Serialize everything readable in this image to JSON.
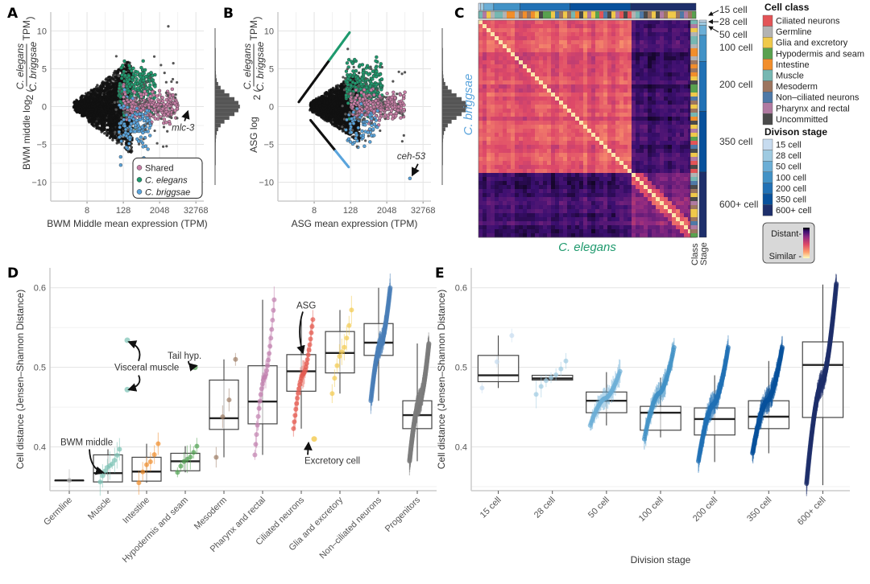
{
  "figure": {
    "panels": [
      "A",
      "B",
      "C",
      "D",
      "E"
    ]
  },
  "chart_data": [
    {
      "panel": "A",
      "type": "scatter",
      "xlabel": "BWM Middle mean expression (TPM)",
      "ylabel_prefix": "BWM middle log",
      "ylabel_num": "C. elegans",
      "ylabel_den": "C. briggsae",
      "ylabel_unit": "TPM",
      "xscale": "log2",
      "xticks": [
        "8",
        "128",
        "2048",
        "32768"
      ],
      "xtick_values": [
        8,
        128,
        2048,
        32768
      ],
      "yticks": [
        "10",
        "5",
        "0",
        "−5",
        "−10"
      ],
      "ytick_values": [
        10,
        5,
        0,
        -5,
        -10
      ],
      "xlim": [
        0.5,
        60000
      ],
      "ylim": [
        -12.5,
        12.5
      ],
      "legend": {
        "position": "bottom-right",
        "entries": [
          {
            "label": "Shared",
            "color": "#c77fa6"
          },
          {
            "label": "C. elegans",
            "color": "#1f9a6e"
          },
          {
            "label": "C. briggsae",
            "color": "#5aa4dc"
          }
        ]
      },
      "annotation": {
        "label": "mlc-3",
        "x": 20000,
        "y": 0
      },
      "marginal_histogram": "y"
    },
    {
      "panel": "B",
      "type": "scatter",
      "xlabel": "ASG mean expression (TPM)",
      "ylabel_prefix": "ASG log",
      "ylabel_num": "C. elegans",
      "ylabel_den": "C. briggsae",
      "ylabel_unit": "TPM",
      "xscale": "log2",
      "xticks": [
        "8",
        "128",
        "2048",
        "32768"
      ],
      "xtick_values": [
        8,
        128,
        2048,
        32768
      ],
      "yticks": [
        "10",
        "5",
        "0",
        "−5",
        "−10"
      ],
      "ytick_values": [
        10,
        5,
        0,
        -5,
        -10
      ],
      "xlim": [
        0.5,
        60000
      ],
      "ylim": [
        -12.5,
        12.5
      ],
      "annotation": {
        "label": "ceh-53",
        "x": 12000,
        "y": -9.5
      },
      "marginal_histogram": "y"
    },
    {
      "panel": "C",
      "type": "heatmap",
      "xlabel": "C. elegans",
      "ylabel": "C. briggsae",
      "side_labels": [
        "Class",
        "Stage"
      ],
      "stage_labels": [
        "15 cell",
        "28 cell",
        "50 cell",
        "100 cell",
        "200 cell",
        "350 cell",
        "600+ cell"
      ],
      "stage_fractions": [
        0.01,
        0.015,
        0.045,
        0.12,
        0.23,
        0.28,
        0.3
      ],
      "colorscale": {
        "high_label": "Distant",
        "low_label": "Similar",
        "colors": [
          "#000004",
          "#3b0f70",
          "#8c2981",
          "#de4968",
          "#fe9f6d",
          "#fcfdbf"
        ]
      },
      "block_split_fraction": 0.71
    },
    {
      "panel": "D",
      "type": "box",
      "ylabel": "Cell distance (Jensen–Shannon Distance)",
      "yticks": [
        "0.6",
        "0.5",
        "0.4"
      ],
      "ytick_values": [
        0.6,
        0.5,
        0.4
      ],
      "ylim": [
        0.345,
        0.625
      ],
      "categories": [
        "Germline",
        "Muscle",
        "Intestine",
        "Hypodermis and seam",
        "Mesoderm",
        "Pharynx and rectal",
        "Ciliated neurons",
        "Glia and excretory",
        "Non–ciliated neurons",
        "Progenitors"
      ],
      "colors": [
        "#a9a9a9",
        "#79c2b4",
        "#f08c2a",
        "#4fa150",
        "#9b7b63",
        "#c07fae",
        "#e45a50",
        "#f2c94c",
        "#4a7fb8",
        "#7d7d7d"
      ],
      "boxes": [
        {
          "q1": 0.358,
          "median": 0.358,
          "q3": 0.358,
          "low": 0.358,
          "high": 0.358
        },
        {
          "q1": 0.356,
          "median": 0.367,
          "q3": 0.39,
          "low": 0.356,
          "high": 0.397
        },
        {
          "q1": 0.357,
          "median": 0.369,
          "q3": 0.387,
          "low": 0.355,
          "high": 0.404
        },
        {
          "q1": 0.37,
          "median": 0.382,
          "q3": 0.392,
          "low": 0.368,
          "high": 0.401
        },
        {
          "q1": 0.422,
          "median": 0.436,
          "q3": 0.484,
          "low": 0.387,
          "high": 0.51
        },
        {
          "q1": 0.429,
          "median": 0.457,
          "q3": 0.502,
          "low": 0.39,
          "high": 0.585
        },
        {
          "q1": 0.47,
          "median": 0.495,
          "q3": 0.516,
          "low": 0.423,
          "high": 0.56
        },
        {
          "q1": 0.493,
          "median": 0.518,
          "q3": 0.545,
          "low": 0.467,
          "high": 0.572
        },
        {
          "q1": 0.515,
          "median": 0.531,
          "q3": 0.555,
          "low": 0.458,
          "high": 0.6
        },
        {
          "q1": 0.423,
          "median": 0.44,
          "q3": 0.458,
          "low": 0.382,
          "high": 0.53
        }
      ],
      "point_counts": [
        1,
        9,
        6,
        7,
        4,
        24,
        26,
        9,
        120,
        250
      ],
      "annotations": [
        {
          "label": "Visceral muscle",
          "points": [
            [
              1,
              0.534
            ],
            [
              1,
              0.472
            ]
          ]
        },
        {
          "label": "Tail hyp.",
          "points": [
            [
              3,
              0.5
            ]
          ]
        },
        {
          "label": "BWM middle",
          "points": [
            [
              1,
              0.367
            ]
          ]
        },
        {
          "label": "ASG",
          "points": [
            [
              6,
              0.512
            ]
          ]
        },
        {
          "label": "Excretory cell",
          "points": [
            [
              7,
              0.41
            ]
          ]
        }
      ]
    },
    {
      "panel": "E",
      "type": "box",
      "xlabel": "Division stage",
      "ylabel": "Cell distance (Jensen–Shannon Distance)",
      "yticks": [
        "0.6",
        "0.5",
        "0.4"
      ],
      "ytick_values": [
        0.6,
        0.5,
        0.4
      ],
      "ylim": [
        0.345,
        0.625
      ],
      "categories": [
        "15 cell",
        "28 cell",
        "50 cell",
        "100 cell",
        "200 cell",
        "350 cell",
        "600+ cell"
      ],
      "colors": [
        "#c6dbef",
        "#9ecae1",
        "#6baed6",
        "#4292c6",
        "#2171b5",
        "#08519c",
        "#1e2f6b"
      ],
      "boxes": [
        {
          "q1": 0.482,
          "median": 0.49,
          "q3": 0.515,
          "low": 0.474,
          "high": 0.54
        },
        {
          "q1": 0.484,
          "median": 0.486,
          "q3": 0.49,
          "low": 0.484,
          "high": 0.491
        },
        {
          "q1": 0.443,
          "median": 0.458,
          "q3": 0.469,
          "low": 0.427,
          "high": 0.494
        },
        {
          "q1": 0.421,
          "median": 0.443,
          "q3": 0.451,
          "low": 0.412,
          "high": 0.487
        },
        {
          "q1": 0.415,
          "median": 0.435,
          "q3": 0.449,
          "low": 0.381,
          "high": 0.49
        },
        {
          "q1": 0.423,
          "median": 0.438,
          "q3": 0.458,
          "low": 0.392,
          "high": 0.508
        },
        {
          "q1": 0.437,
          "median": 0.503,
          "q3": 0.532,
          "low": 0.352,
          "high": 0.604
        }
      ],
      "point_counts": [
        3,
        7,
        40,
        60,
        110,
        140,
        260
      ],
      "point_ranges": [
        [
          0.474,
          0.54
        ],
        [
          0.466,
          0.508
        ],
        [
          0.427,
          0.495
        ],
        [
          0.41,
          0.525
        ],
        [
          0.382,
          0.525
        ],
        [
          0.392,
          0.525
        ],
        [
          0.354,
          0.605
        ]
      ]
    }
  ],
  "legends": {
    "cell_class": {
      "title": "Cell class",
      "items": [
        {
          "label": "Ciliated neurons",
          "color": "#e35457"
        },
        {
          "label": "Germline",
          "color": "#b3b3b3"
        },
        {
          "label": "Glia and excretory",
          "color": "#f0c94a"
        },
        {
          "label": "Hypodermis and seam",
          "color": "#59a14f"
        },
        {
          "label": "Intestine",
          "color": "#f28e2b"
        },
        {
          "label": "Muscle",
          "color": "#76b7b2"
        },
        {
          "label": "Mesoderm",
          "color": "#9c755f"
        },
        {
          "label": "Non–ciliated neurons",
          "color": "#4e79a7"
        },
        {
          "label": "Pharynx and rectal",
          "color": "#b07aa1"
        },
        {
          "label": "Uncommitted",
          "color": "#4a4a4a"
        }
      ]
    },
    "division_stage": {
      "title": "Divison stage",
      "items": [
        {
          "label": "15 cell",
          "color": "#c6dbef"
        },
        {
          "label": "28 cell",
          "color": "#9ecae1"
        },
        {
          "label": "50 cell",
          "color": "#6baed6"
        },
        {
          "label": "100 cell",
          "color": "#4292c6"
        },
        {
          "label": "200 cell",
          "color": "#2171b5"
        },
        {
          "label": "350 cell",
          "color": "#08519c"
        },
        {
          "label": "600+ cell",
          "color": "#1e2f6b"
        }
      ]
    },
    "distance": {
      "high": "Distant-",
      "low": "Similar -"
    }
  }
}
